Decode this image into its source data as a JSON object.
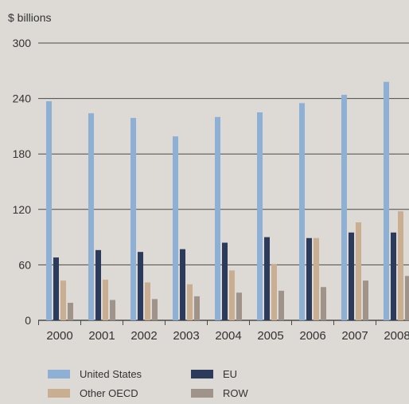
{
  "chart_data": {
    "type": "bar",
    "ylabel": "$ billions",
    "ylim": [
      0,
      300
    ],
    "yticks": [
      0,
      60,
      120,
      180,
      240,
      300
    ],
    "categories": [
      "2000",
      "2001",
      "2002",
      "2003",
      "2004",
      "2005",
      "2006",
      "2007",
      "2008"
    ],
    "series": [
      {
        "name": "United States",
        "color": "#8eb0d4",
        "values": [
          237,
          224,
          219,
          199,
          220,
          225,
          235,
          244,
          258
        ]
      },
      {
        "name": "EU",
        "color": "#2c3a5c",
        "values": [
          68,
          76,
          74,
          77,
          84,
          90,
          89,
          95,
          95
        ]
      },
      {
        "name": "Other OECD",
        "color": "#c9ae92",
        "values": [
          43,
          44,
          41,
          39,
          54,
          61,
          89,
          106,
          118
        ]
      },
      {
        "name": "ROW",
        "color": "#a0948a",
        "values": [
          19,
          22,
          23,
          26,
          30,
          32,
          36,
          43,
          48
        ]
      }
    ],
    "grid": true,
    "legend": "bottom"
  }
}
